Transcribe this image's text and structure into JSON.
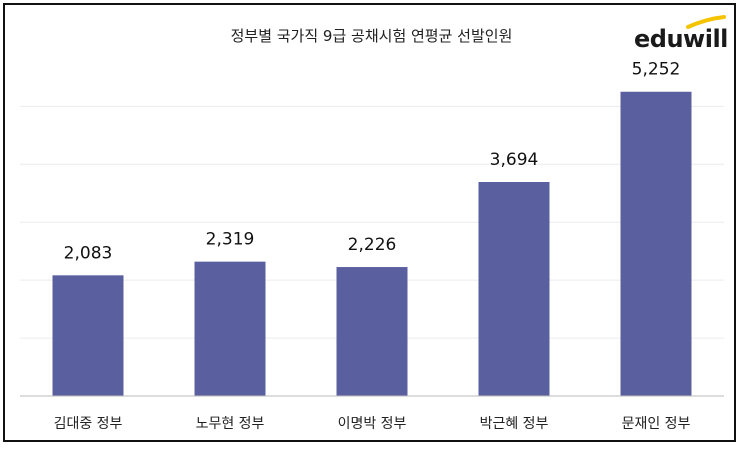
{
  "logo": {
    "text": "eduwill",
    "accent_color": "#f5c400"
  },
  "chart_data": {
    "type": "bar",
    "title": "정부별 국가직 9급 공채시험 연평균 선발인원",
    "categories": [
      "김대중 정부",
      "노무현 정부",
      "이명박 정부",
      "박근혜 정부",
      "문재인 정부"
    ],
    "values": [
      2083,
      2319,
      2226,
      3694,
      5252
    ],
    "value_labels": [
      "2,083",
      "2,319",
      "2,226",
      "3,694",
      "5,252"
    ],
    "xlabel": "",
    "ylabel": "",
    "ylim": [
      0,
      5800
    ],
    "grid": true,
    "legend": "none",
    "bar_color": "#5a5fa0"
  }
}
